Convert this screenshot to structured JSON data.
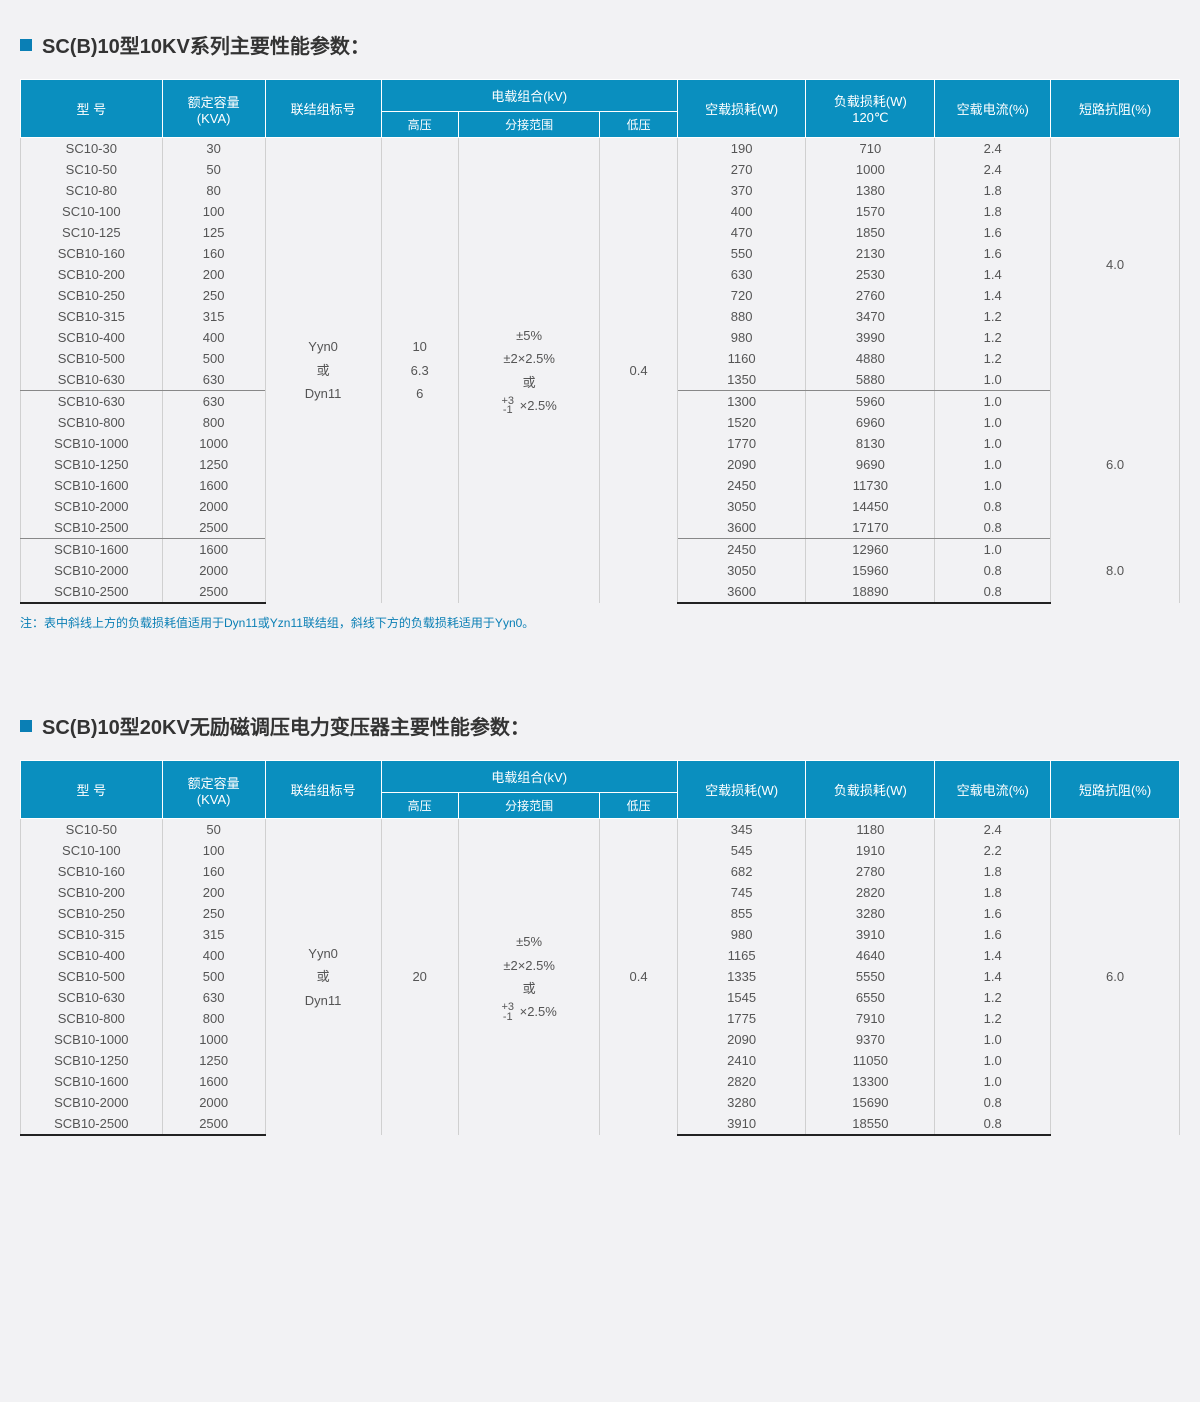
{
  "table1": {
    "title": "SC(B)10型10KV系列主要性能参数：",
    "note": "注：表中斜线上方的负载损耗值适用于Dyn11或Yzn11联结组，斜线下方的负载损耗适用于Yyn0。",
    "headers": {
      "model": "型  号",
      "capacity": "额定容量\n(KVA)",
      "connection": "联结组标号",
      "load_combo": "电载组合(kV)",
      "hv": "高压",
      "tap": "分接范围",
      "lv": "低压",
      "no_load": "空载损耗(W)",
      "load_loss": "负载损耗(W)\n120℃",
      "no_load_cur": "空载电流(%)",
      "impedance": "短路抗阻(%)"
    },
    "merged": {
      "connection": "Yyn0\n或\nDyn11",
      "hv": "10\n6.3\n6",
      "tap_lines": [
        "±5%",
        "±2×2.5%",
        "或"
      ],
      "tap_frac_top": "+3",
      "tap_frac_bot": "-1",
      "tap_frac_tail": "×2.5%",
      "lv": "0.4"
    },
    "groups": [
      {
        "impedance": "4.0",
        "rows": [
          {
            "model": "SC10-30",
            "kva": "30",
            "nl": "190",
            "ll": "710",
            "cur": "2.4"
          },
          {
            "model": "SC10-50",
            "kva": "50",
            "nl": "270",
            "ll": "1000",
            "cur": "2.4"
          },
          {
            "model": "SC10-80",
            "kva": "80",
            "nl": "370",
            "ll": "1380",
            "cur": "1.8"
          },
          {
            "model": "SC10-100",
            "kva": "100",
            "nl": "400",
            "ll": "1570",
            "cur": "1.8"
          },
          {
            "model": "SC10-125",
            "kva": "125",
            "nl": "470",
            "ll": "1850",
            "cur": "1.6"
          },
          {
            "model": "SCB10-160",
            "kva": "160",
            "nl": "550",
            "ll": "2130",
            "cur": "1.6"
          },
          {
            "model": "SCB10-200",
            "kva": "200",
            "nl": "630",
            "ll": "2530",
            "cur": "1.4"
          },
          {
            "model": "SCB10-250",
            "kva": "250",
            "nl": "720",
            "ll": "2760",
            "cur": "1.4"
          },
          {
            "model": "SCB10-315",
            "kva": "315",
            "nl": "880",
            "ll": "3470",
            "cur": "1.2"
          },
          {
            "model": "SCB10-400",
            "kva": "400",
            "nl": "980",
            "ll": "3990",
            "cur": "1.2"
          },
          {
            "model": "SCB10-500",
            "kva": "500",
            "nl": "1160",
            "ll": "4880",
            "cur": "1.2"
          },
          {
            "model": "SCB10-630",
            "kva": "630",
            "nl": "1350",
            "ll": "5880",
            "cur": "1.0"
          }
        ]
      },
      {
        "impedance": "6.0",
        "rows": [
          {
            "model": "SCB10-630",
            "kva": "630",
            "nl": "1300",
            "ll": "5960",
            "cur": "1.0"
          },
          {
            "model": "SCB10-800",
            "kva": "800",
            "nl": "1520",
            "ll": "6960",
            "cur": "1.0"
          },
          {
            "model": "SCB10-1000",
            "kva": "1000",
            "nl": "1770",
            "ll": "8130",
            "cur": "1.0"
          },
          {
            "model": "SCB10-1250",
            "kva": "1250",
            "nl": "2090",
            "ll": "9690",
            "cur": "1.0"
          },
          {
            "model": "SCB10-1600",
            "kva": "1600",
            "nl": "2450",
            "ll": "11730",
            "cur": "1.0"
          },
          {
            "model": "SCB10-2000",
            "kva": "2000",
            "nl": "3050",
            "ll": "14450",
            "cur": "0.8"
          },
          {
            "model": "SCB10-2500",
            "kva": "2500",
            "nl": "3600",
            "ll": "17170",
            "cur": "0.8"
          }
        ]
      },
      {
        "impedance": "8.0",
        "rows": [
          {
            "model": "SCB10-1600",
            "kva": "1600",
            "nl": "2450",
            "ll": "12960",
            "cur": "1.0"
          },
          {
            "model": "SCB10-2000",
            "kva": "2000",
            "nl": "3050",
            "ll": "15960",
            "cur": "0.8"
          },
          {
            "model": "SCB10-2500",
            "kva": "2500",
            "nl": "3600",
            "ll": "18890",
            "cur": "0.8"
          }
        ]
      }
    ]
  },
  "table2": {
    "title": "SC(B)10型20KV无励磁调压电力变压器主要性能参数：",
    "headers": {
      "model": "型  号",
      "capacity": "额定容量\n(KVA)",
      "connection": "联结组标号",
      "load_combo": "电载组合(kV)",
      "hv": "高压",
      "tap": "分接范围",
      "lv": "低压",
      "no_load": "空载损耗(W)",
      "load_loss": "负载损耗(W)",
      "no_load_cur": "空载电流(%)",
      "impedance": "短路抗阻(%)"
    },
    "merged": {
      "connection": "Yyn0\n或\nDyn11",
      "hv": "20",
      "tap_lines": [
        "±5%",
        "±2×2.5%",
        "或"
      ],
      "tap_frac_top": "+3",
      "tap_frac_bot": "-1",
      "tap_frac_tail": "×2.5%",
      "lv": "0.4"
    },
    "groups": [
      {
        "impedance": "6.0",
        "rows": [
          {
            "model": "SC10-50",
            "kva": "50",
            "nl": "345",
            "ll": "1180",
            "cur": "2.4"
          },
          {
            "model": "SC10-100",
            "kva": "100",
            "nl": "545",
            "ll": "1910",
            "cur": "2.2"
          },
          {
            "model": "SCB10-160",
            "kva": "160",
            "nl": "682",
            "ll": "2780",
            "cur": "1.8"
          },
          {
            "model": "SCB10-200",
            "kva": "200",
            "nl": "745",
            "ll": "2820",
            "cur": "1.8"
          },
          {
            "model": "SCB10-250",
            "kva": "250",
            "nl": "855",
            "ll": "3280",
            "cur": "1.6"
          },
          {
            "model": "SCB10-315",
            "kva": "315",
            "nl": "980",
            "ll": "3910",
            "cur": "1.6"
          },
          {
            "model": "SCB10-400",
            "kva": "400",
            "nl": "1165",
            "ll": "4640",
            "cur": "1.4"
          },
          {
            "model": "SCB10-500",
            "kva": "500",
            "nl": "1335",
            "ll": "5550",
            "cur": "1.4"
          },
          {
            "model": "SCB10-630",
            "kva": "630",
            "nl": "1545",
            "ll": "6550",
            "cur": "1.2"
          },
          {
            "model": "SCB10-800",
            "kva": "800",
            "nl": "1775",
            "ll": "7910",
            "cur": "1.2"
          },
          {
            "model": "SCB10-1000",
            "kva": "1000",
            "nl": "2090",
            "ll": "9370",
            "cur": "1.0"
          },
          {
            "model": "SCB10-1250",
            "kva": "1250",
            "nl": "2410",
            "ll": "11050",
            "cur": "1.0"
          },
          {
            "model": "SCB10-1600",
            "kva": "1600",
            "nl": "2820",
            "ll": "13300",
            "cur": "1.0"
          },
          {
            "model": "SCB10-2000",
            "kva": "2000",
            "nl": "3280",
            "ll": "15690",
            "cur": "0.8"
          },
          {
            "model": "SCB10-2500",
            "kva": "2500",
            "nl": "3910",
            "ll": "18550",
            "cur": "0.8"
          }
        ]
      }
    ]
  }
}
